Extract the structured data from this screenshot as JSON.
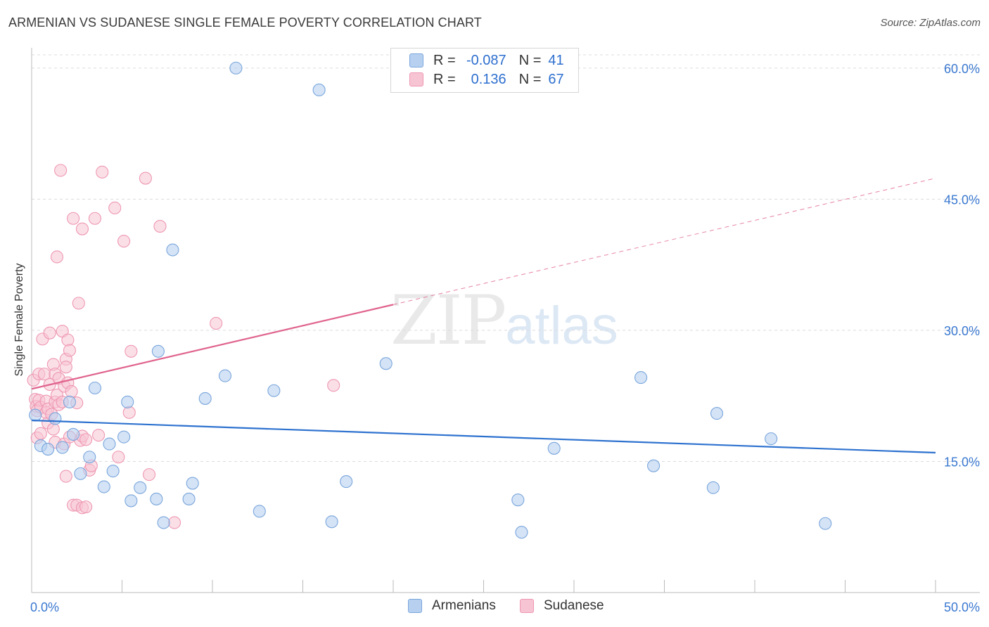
{
  "title": "ARMENIAN VS SUDANESE SINGLE FEMALE POVERTY CORRELATION CHART",
  "source": "Source: ZipAtlas.com",
  "watermark": {
    "zip": "ZIP",
    "atlas": "atlas"
  },
  "legend": {
    "rows": [
      {
        "r_label": "R =",
        "r_value": "-0.087",
        "n_label": "N =",
        "n_value": "41"
      },
      {
        "r_label": "R =",
        "r_value": "0.136",
        "n_label": "N =",
        "n_value": "67"
      }
    ]
  },
  "bottom_legend": {
    "armenians": "Armenians",
    "sudanese": "Sudanese"
  },
  "colors": {
    "armenians_fill": "#b8d0f0",
    "armenians_stroke": "#7aa6dc",
    "armenians_line": "#2e72cf",
    "sudanese_fill": "#f7c4d3",
    "sudanese_stroke": "#ee97b2",
    "sudanese_line": "#e0638e",
    "axis_text": "#3a78d0",
    "grid": "#dcdcdc"
  },
  "chart_data": {
    "type": "scatter",
    "title": "ARMENIAN VS SUDANESE SINGLE FEMALE POVERTY CORRELATION CHART",
    "xlabel": "",
    "ylabel": "Single Female Poverty",
    "xlim": [
      0,
      50
    ],
    "ylim": [
      0,
      62
    ],
    "x_tick_labels": [
      "0.0%",
      "50.0%"
    ],
    "y_ticks": [
      15,
      30,
      45,
      60
    ],
    "y_tick_labels": [
      "15.0%",
      "30.0%",
      "45.0%",
      "60.0%"
    ],
    "grid": true,
    "series": [
      {
        "name": "Armenians",
        "R": -0.087,
        "N": 41,
        "trend": {
          "x": [
            0,
            50
          ],
          "y": [
            19.7,
            16.0
          ]
        },
        "points": [
          [
            0.2,
            20.3
          ],
          [
            0.5,
            16.8
          ],
          [
            0.9,
            16.4
          ],
          [
            1.3,
            19.9
          ],
          [
            1.7,
            16.6
          ],
          [
            2.1,
            21.8
          ],
          [
            2.3,
            18.1
          ],
          [
            2.7,
            13.6
          ],
          [
            3.2,
            15.5
          ],
          [
            3.5,
            23.4
          ],
          [
            4.0,
            12.1
          ],
          [
            4.3,
            17.0
          ],
          [
            4.5,
            13.9
          ],
          [
            5.1,
            17.8
          ],
          [
            5.3,
            21.8
          ],
          [
            5.5,
            10.5
          ],
          [
            6.0,
            12.0
          ],
          [
            6.9,
            10.7
          ],
          [
            7.0,
            27.6
          ],
          [
            7.3,
            8.0
          ],
          [
            7.8,
            39.2
          ],
          [
            8.7,
            10.7
          ],
          [
            8.9,
            12.5
          ],
          [
            9.6,
            22.2
          ],
          [
            10.7,
            24.8
          ],
          [
            11.3,
            60.0
          ],
          [
            12.6,
            9.3
          ],
          [
            13.4,
            23.1
          ],
          [
            15.9,
            57.5
          ],
          [
            16.6,
            8.1
          ],
          [
            17.4,
            12.7
          ],
          [
            19.6,
            26.2
          ],
          [
            26.9,
            10.6
          ],
          [
            27.1,
            6.9
          ],
          [
            28.9,
            16.5
          ],
          [
            33.7,
            24.6
          ],
          [
            34.4,
            14.5
          ],
          [
            37.7,
            12.0
          ],
          [
            37.9,
            20.5
          ],
          [
            40.9,
            17.6
          ],
          [
            43.9,
            7.9
          ]
        ]
      },
      {
        "name": "Sudanese",
        "R": 0.136,
        "N": 67,
        "trend": {
          "x": [
            0,
            50
          ],
          "y": [
            23.3,
            47.4
          ]
        },
        "trend_solid_end_x": 20,
        "points": [
          [
            0.1,
            24.3
          ],
          [
            0.2,
            22.1
          ],
          [
            0.25,
            21.3
          ],
          [
            0.3,
            20.8
          ],
          [
            0.3,
            17.7
          ],
          [
            0.4,
            25.0
          ],
          [
            0.4,
            22.0
          ],
          [
            0.5,
            21.2
          ],
          [
            0.5,
            18.2
          ],
          [
            0.6,
            29.0
          ],
          [
            0.7,
            25.0
          ],
          [
            0.8,
            21.9
          ],
          [
            0.8,
            20.6
          ],
          [
            0.9,
            21.0
          ],
          [
            0.9,
            19.4
          ],
          [
            1.0,
            29.7
          ],
          [
            1.0,
            23.8
          ],
          [
            1.1,
            20.4
          ],
          [
            1.2,
            26.1
          ],
          [
            1.2,
            18.7
          ],
          [
            1.3,
            25.0
          ],
          [
            1.3,
            21.8
          ],
          [
            1.3,
            17.2
          ],
          [
            1.4,
            22.6
          ],
          [
            1.4,
            38.4
          ],
          [
            1.5,
            24.5
          ],
          [
            1.5,
            21.5
          ],
          [
            1.6,
            48.3
          ],
          [
            1.7,
            29.9
          ],
          [
            1.7,
            21.8
          ],
          [
            1.8,
            23.6
          ],
          [
            1.8,
            17.0
          ],
          [
            1.9,
            26.7
          ],
          [
            1.9,
            25.8
          ],
          [
            1.9,
            13.3
          ],
          [
            2.0,
            28.9
          ],
          [
            2.0,
            24.0
          ],
          [
            2.1,
            27.7
          ],
          [
            2.1,
            17.8
          ],
          [
            2.2,
            23.0
          ],
          [
            2.3,
            42.8
          ],
          [
            2.3,
            10.0
          ],
          [
            2.5,
            21.7
          ],
          [
            2.5,
            10.0
          ],
          [
            2.6,
            33.1
          ],
          [
            2.7,
            17.4
          ],
          [
            2.8,
            41.6
          ],
          [
            2.8,
            17.9
          ],
          [
            2.8,
            9.7
          ],
          [
            3.0,
            17.5
          ],
          [
            3.0,
            9.8
          ],
          [
            3.2,
            14.0
          ],
          [
            3.3,
            14.5
          ],
          [
            3.5,
            42.8
          ],
          [
            3.7,
            18.0
          ],
          [
            3.9,
            48.1
          ],
          [
            4.6,
            44.0
          ],
          [
            4.8,
            15.5
          ],
          [
            5.1,
            40.2
          ],
          [
            5.4,
            20.6
          ],
          [
            5.5,
            27.6
          ],
          [
            6.3,
            47.4
          ],
          [
            6.5,
            13.5
          ],
          [
            7.1,
            41.9
          ],
          [
            7.9,
            8.0
          ],
          [
            10.2,
            30.8
          ],
          [
            16.7,
            23.7
          ]
        ]
      }
    ]
  }
}
